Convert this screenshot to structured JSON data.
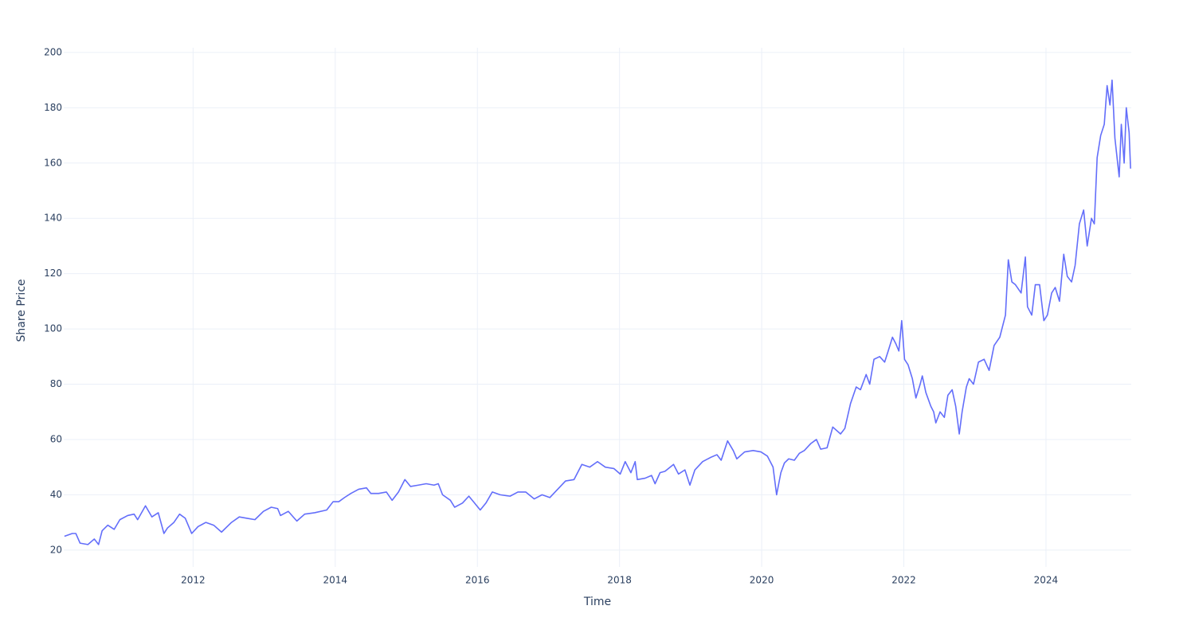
{
  "chart_data": {
    "type": "line",
    "x_label": "Time",
    "y_label": "Share Price",
    "xlim": [
      2010.18,
      2025.2
    ],
    "ylim": [
      13.9,
      201.7
    ],
    "xticks": [
      2012,
      2014,
      2016,
      2018,
      2020,
      2022,
      2024
    ],
    "yticks": [
      20,
      40,
      60,
      80,
      100,
      120,
      140,
      160,
      180,
      200
    ],
    "grid": true,
    "x": [
      2010.19,
      2010.3,
      2010.35,
      2010.41,
      2010.52,
      2010.61,
      2010.67,
      2010.72,
      2010.8,
      2010.89,
      2010.97,
      2011.08,
      2011.17,
      2011.22,
      2011.33,
      2011.42,
      2011.51,
      2011.59,
      2011.64,
      2011.73,
      2011.81,
      2011.89,
      2011.98,
      2012.07,
      2012.18,
      2012.29,
      2012.4,
      2012.54,
      2012.65,
      2012.76,
      2012.87,
      2012.99,
      2013.1,
      2013.19,
      2013.23,
      2013.34,
      2013.46,
      2013.57,
      2013.71,
      2013.88,
      2013.97,
      2014.05,
      2014.13,
      2014.22,
      2014.33,
      2014.44,
      2014.5,
      2014.61,
      2014.72,
      2014.8,
      2014.89,
      2014.98,
      2015.06,
      2015.17,
      2015.28,
      2015.39,
      2015.45,
      2015.51,
      2015.62,
      2015.68,
      2015.79,
      2015.88,
      2015.96,
      2016.04,
      2016.12,
      2016.21,
      2016.32,
      2016.46,
      2016.57,
      2016.68,
      2016.8,
      2016.91,
      2017.02,
      2017.13,
      2017.24,
      2017.36,
      2017.47,
      2017.58,
      2017.69,
      2017.8,
      2017.92,
      2018.01,
      2018.08,
      2018.16,
      2018.22,
      2018.25,
      2018.36,
      2018.45,
      2018.5,
      2018.57,
      2018.64,
      2018.76,
      2018.83,
      2018.92,
      2018.99,
      2019.06,
      2019.17,
      2019.28,
      2019.37,
      2019.43,
      2019.52,
      2019.6,
      2019.65,
      2019.76,
      2019.88,
      2019.99,
      2020.08,
      2020.16,
      2020.21,
      2020.27,
      2020.32,
      2020.38,
      2020.46,
      2020.53,
      2020.6,
      2020.69,
      2020.77,
      2020.83,
      2020.92,
      2021.0,
      2021.11,
      2021.17,
      2021.25,
      2021.33,
      2021.39,
      2021.47,
      2021.52,
      2021.58,
      2021.66,
      2021.73,
      2021.78,
      2021.84,
      2021.89,
      2021.93,
      2021.97,
      2022.01,
      2022.06,
      2022.12,
      2022.17,
      2022.23,
      2022.26,
      2022.31,
      2022.38,
      2022.42,
      2022.45,
      2022.51,
      2022.57,
      2022.62,
      2022.68,
      2022.73,
      2022.78,
      2022.82,
      2022.88,
      2022.92,
      2022.98,
      2023.05,
      2023.13,
      2023.2,
      2023.27,
      2023.35,
      2023.43,
      2023.47,
      2023.52,
      2023.57,
      2023.65,
      2023.71,
      2023.74,
      2023.8,
      2023.85,
      2023.91,
      2023.97,
      2024.02,
      2024.08,
      2024.13,
      2024.19,
      2024.25,
      2024.3,
      2024.36,
      2024.41,
      2024.47,
      2024.53,
      2024.58,
      2024.64,
      2024.68,
      2024.72,
      2024.77,
      2024.82,
      2024.86,
      2024.9,
      2024.93,
      2024.97,
      2025.03,
      2025.06,
      2025.1,
      2025.13,
      2025.17,
      2025.19
    ],
    "series": [
      {
        "color": "#636efa",
        "values": [
          25,
          26,
          26,
          22.5,
          22,
          24,
          22,
          27,
          29,
          27.5,
          31,
          32.5,
          33,
          31,
          36,
          32,
          33.5,
          26,
          28,
          30,
          33,
          31.5,
          26,
          28.5,
          30,
          29,
          26.5,
          30,
          32,
          31.5,
          31,
          34,
          35.5,
          35,
          32.5,
          34,
          30.5,
          33,
          33.5,
          34.5,
          37.5,
          37.5,
          39,
          40.5,
          42,
          42.5,
          40.5,
          40.5,
          41,
          38,
          41,
          45.5,
          43,
          43.5,
          44,
          43.5,
          44,
          40,
          38,
          35.5,
          37,
          39.5,
          37,
          34.5,
          37,
          41,
          40,
          39.5,
          41,
          41,
          38.5,
          40,
          39,
          42,
          45,
          45.5,
          51,
          50,
          52,
          50,
          49.5,
          47.5,
          52,
          48,
          52,
          45.5,
          46,
          47,
          44,
          48,
          48.5,
          51,
          47.5,
          49,
          43.5,
          49,
          52,
          53.5,
          54.5,
          52.5,
          59.5,
          56,
          53,
          55.5,
          56,
          55.5,
          54,
          50,
          40,
          48,
          51.5,
          53,
          52.5,
          55,
          56,
          58.5,
          60,
          56.5,
          57,
          64.5,
          62,
          64,
          73,
          79,
          78,
          83.5,
          80,
          89,
          90,
          88,
          92,
          97,
          94.5,
          92,
          103,
          89,
          87,
          82,
          75,
          80,
          83,
          77,
          72,
          70,
          66,
          70,
          68,
          76,
          78,
          72,
          62,
          70,
          79,
          82,
          80,
          88,
          89,
          85,
          94,
          97,
          105,
          125,
          117,
          116,
          113,
          126,
          108,
          105,
          116,
          116,
          103,
          105,
          113,
          115,
          110,
          127,
          119,
          117,
          123,
          138,
          143,
          130,
          140,
          138,
          162,
          170,
          174,
          188,
          181,
          190,
          169,
          155,
          174,
          160,
          180,
          171,
          158
        ]
      }
    ]
  }
}
